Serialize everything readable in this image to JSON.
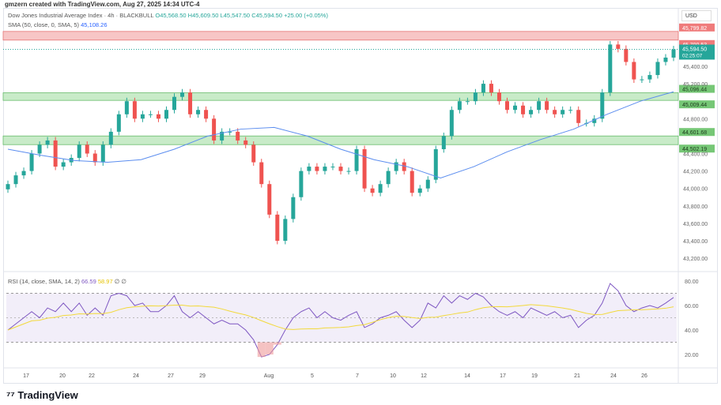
{
  "credit": "gmzern created with TradingView.com, Aug 27, 2025 14:34 UTC-4",
  "legend": {
    "symbol": "Dow Jones Industrial Average Index · 4h · BLACKBULL",
    "open": "O45,568.50",
    "high": "H45,609.50",
    "low": "L45,547.50",
    "close": "C45,594.50",
    "change": "+25.00 (+0.05%)",
    "sma_label": "SMA (50, close, 0, SMA, 5)",
    "sma_value": "45,108.26"
  },
  "rsi_legend": {
    "label": "RSI (14, close, SMA, 14, 2)",
    "value": "66.59",
    "sma_value": "58.97",
    "extra": "∅ ∅"
  },
  "currency": "USD",
  "logo": "TradingView",
  "colors": {
    "up": "#26a69a",
    "down": "#ef5350",
    "sma": "#5b8def",
    "rsi": "#7e57c2",
    "rsi_sma": "#f2d93b",
    "resist": "#f7c6c6",
    "support": "#c8ebc8"
  },
  "chart_data": [
    {
      "type": "candlestick",
      "price_ticks": [
        45400,
        45200,
        44800,
        44400,
        44200,
        44000,
        43800,
        43600,
        43400,
        43200
      ],
      "zones": [
        {
          "from": 45700.53,
          "to": 45799.82,
          "kind": "resistance",
          "labels": [
            "45,799.82",
            "45,700.53"
          ]
        },
        {
          "from": 45009.44,
          "to": 45096.44,
          "kind": "support",
          "labels": [
            "45,096.44",
            "45,009.44"
          ]
        },
        {
          "from": 44502.19,
          "to": 44601.68,
          "kind": "support",
          "labels": [
            "44,601.68",
            "44,502.19"
          ]
        }
      ],
      "last_price": "45,594.50",
      "countdown": "02:25:07",
      "x_labels": [
        "17",
        "20",
        "22",
        "24",
        "27",
        "29",
        "Aug",
        "5",
        "7",
        "10",
        "12",
        "14",
        "17",
        "19",
        "21",
        "24",
        "26"
      ],
      "closes": [
        44050,
        44150,
        44200,
        44400,
        44500,
        44550,
        44250,
        44300,
        44350,
        44500,
        44400,
        44300,
        44500,
        44650,
        44850,
        45000,
        44800,
        44850,
        44850,
        44800,
        44900,
        45050,
        45100,
        44850,
        44900,
        44800,
        44550,
        44650,
        44650,
        44550,
        44500,
        44300,
        44050,
        43700,
        43400,
        43650,
        43900,
        44200,
        44250,
        44200,
        44250,
        44250,
        44200,
        44200,
        44450,
        44000,
        43950,
        44050,
        44200,
        44300,
        44200,
        43950,
        44000,
        44100,
        44450,
        44600,
        44900,
        45000,
        45000,
        45100,
        45200,
        45100,
        45000,
        44900,
        44950,
        44850,
        44900,
        45000,
        44900,
        44850,
        44900,
        44900,
        44750,
        44750,
        44800,
        45100,
        45650,
        45600,
        45450,
        45250,
        45250,
        45300,
        45450,
        45500,
        45594.5
      ],
      "sma50": [
        44450,
        44380,
        44320,
        44300,
        44330,
        44450,
        44600,
        44680,
        44700,
        44600,
        44450,
        44330,
        44250,
        44120,
        44250,
        44420,
        44560,
        44680,
        44850,
        45000,
        45108.26
      ]
    },
    {
      "type": "line",
      "ylim": [
        10,
        85
      ],
      "y_ticks": [
        80,
        60,
        40,
        20
      ],
      "bands": [
        30,
        70
      ],
      "rsi": [
        40,
        45,
        50,
        55,
        50,
        58,
        55,
        62,
        55,
        62,
        52,
        58,
        52,
        68,
        70,
        68,
        60,
        62,
        55,
        55,
        60,
        68,
        55,
        50,
        55,
        50,
        45,
        48,
        45,
        45,
        40,
        32,
        18,
        20,
        28,
        40,
        50,
        55,
        58,
        50,
        55,
        50,
        48,
        52,
        55,
        42,
        45,
        50,
        52,
        55,
        48,
        42,
        48,
        62,
        58,
        68,
        62,
        68,
        65,
        70,
        67,
        60,
        55,
        52,
        55,
        50,
        58,
        55,
        52,
        55,
        50,
        52,
        42,
        48,
        52,
        62,
        78,
        72,
        60,
        55,
        58,
        60,
        58,
        62,
        66.59
      ]
    }
  ]
}
